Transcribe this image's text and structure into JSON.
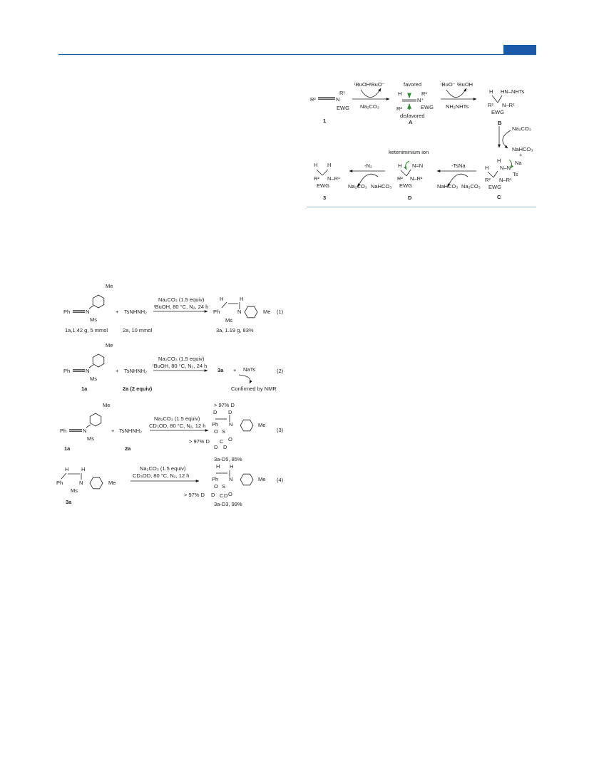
{
  "mechanism": {
    "compounds": [
      "1",
      "A",
      "B",
      "C",
      "D",
      "3"
    ],
    "reagents": [
      "ᵗBuOH",
      "ᵗBuO⁻",
      "Na₂CO₃",
      "ᵗBuO⁻",
      "ᵗBuOH",
      "NH₂NHTs",
      "Na₂CO₃",
      "NaHCO₃",
      "-TsNa",
      "NaHCO₃",
      "Na₂CO₃",
      "-N₂",
      "Na₂CO₃",
      "NaHCO₃"
    ],
    "notes": [
      "favored",
      "disfavored",
      "keteniminium ion"
    ],
    "atoms": [
      "R²",
      "N",
      "R¹",
      "EWG",
      "H",
      "R¹",
      "N⁺",
      "R²",
      "EWG",
      "H",
      "HN–NHTs",
      "R²",
      "N–R¹",
      "EWG",
      "H",
      "N–N",
      "Na",
      "+",
      "Ts",
      "H",
      "R²",
      "N–R¹",
      "EWG",
      "H",
      "N=N",
      "R²",
      "N–R¹",
      "EWG",
      "H",
      "H",
      "R²",
      "N–R¹",
      "EWG"
    ]
  },
  "scheme": {
    "equations": [
      {
        "atoms": [
          "Me",
          "Ph",
          "N",
          "Ms",
          "H",
          "H",
          "Ph",
          "N",
          "Ms",
          "Me"
        ],
        "reagents": [
          "+",
          "TsNHNH₂"
        ],
        "conditions": [
          "Na₂CO₃ (1.5 equiv)",
          "ᵗBuOH, 80 °C, N₂, 24 h"
        ],
        "labels": [
          "1a,1.42 g, 5 mmol",
          "2a, 10 mmol",
          "3a, 1.19 g, 83%"
        ],
        "number": "(1)"
      },
      {
        "atoms": [
          "Me",
          "Ph",
          "N",
          "Ms"
        ],
        "reagents": [
          "+",
          "TsNHNH₂",
          "3a",
          "+",
          "NaTs",
          "Confirmed by NMR"
        ],
        "conditions": [
          "Na₂CO₃ (1.5 equiv)",
          "ᵗBuOH, 80 °C, N₂, 24 h"
        ],
        "labels": [
          "1a",
          "2a  (2 equiv)"
        ],
        "number": "(2)"
      },
      {
        "atoms": [
          "Me",
          "Ph",
          "N",
          "Ms",
          "> 97% D",
          "D",
          "D",
          "Ph",
          "N",
          "O",
          "S",
          "O",
          "C",
          "D",
          "D",
          "> 97% D",
          "Me"
        ],
        "reagents": [
          "+",
          "TsNHNH₂"
        ],
        "conditions": [
          "Na₂CO₃ (1.5 equiv)",
          "CD₃OD",
          ", 80 °C, N₂, 12 h"
        ],
        "labels": [
          "1a",
          "2a",
          "3a-D5,  85%"
        ],
        "number": "(3)"
      },
      {
        "atoms": [
          "H",
          "H",
          "Ph",
          "N",
          "Ms",
          "Me",
          "H",
          "H",
          "Ph",
          "N",
          "O",
          "S",
          "O",
          "C",
          "D",
          "D",
          "> 97% D",
          "Me"
        ],
        "reagents": [],
        "conditions": [
          "Na₂CO₃ (1.5 equiv)",
          "CD₃OD",
          ", 80 °C, N₂, 12 h"
        ],
        "labels": [
          "3a",
          "3a-D3,  99%"
        ],
        "number": "(4)"
      }
    ]
  }
}
